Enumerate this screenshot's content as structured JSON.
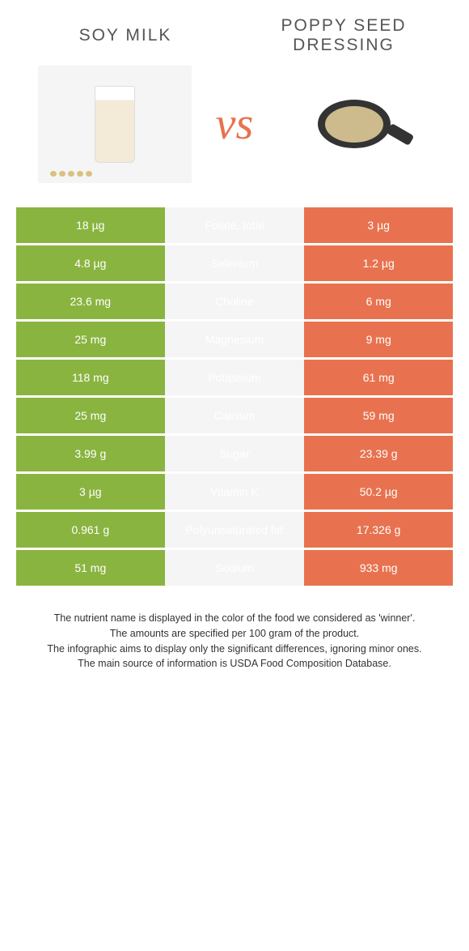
{
  "foods": {
    "left": {
      "name": "Soy milk",
      "color": "#8ab440"
    },
    "right": {
      "name": "Poppy seed dressing",
      "color": "#e8724f"
    }
  },
  "vs_label": "vs",
  "vs_color": "#e8724f",
  "rows": [
    {
      "left": "18 µg",
      "label": "Folate, total",
      "right": "3 µg",
      "winner": "left"
    },
    {
      "left": "4.8 µg",
      "label": "Selenium",
      "right": "1.2 µg",
      "winner": "left"
    },
    {
      "left": "23.6 mg",
      "label": "Choline",
      "right": "6 mg",
      "winner": "left"
    },
    {
      "left": "25 mg",
      "label": "Magnesium",
      "right": "9 mg",
      "winner": "left"
    },
    {
      "left": "118 mg",
      "label": "Potassium",
      "right": "61 mg",
      "winner": "left"
    },
    {
      "left": "25 mg",
      "label": "Calcium",
      "right": "59 mg",
      "winner": "right"
    },
    {
      "left": "3.99 g",
      "label": "Sugar",
      "right": "23.39 g",
      "winner": "right"
    },
    {
      "left": "3 µg",
      "label": "Vitamin K",
      "right": "50.2 µg",
      "winner": "right"
    },
    {
      "left": "0.961 g",
      "label": "Polyunsaturated fat",
      "right": "17.326 g",
      "winner": "right"
    },
    {
      "left": "51 mg",
      "label": "Sodium",
      "right": "933 mg",
      "winner": "right"
    }
  ],
  "notes": [
    "The nutrient name is displayed in the color of the food we considered as 'winner'.",
    "The amounts are specified per 100 gram of the product.",
    "The infographic aims to display only the significant differences, ignoring minor ones.",
    "The main source of information is USDA Food Composition Database."
  ],
  "colors": {
    "left_bg": "#8ab440",
    "right_bg": "#e8724f",
    "mid_bg": "#f5f5f5",
    "page_bg": "#ffffff"
  }
}
